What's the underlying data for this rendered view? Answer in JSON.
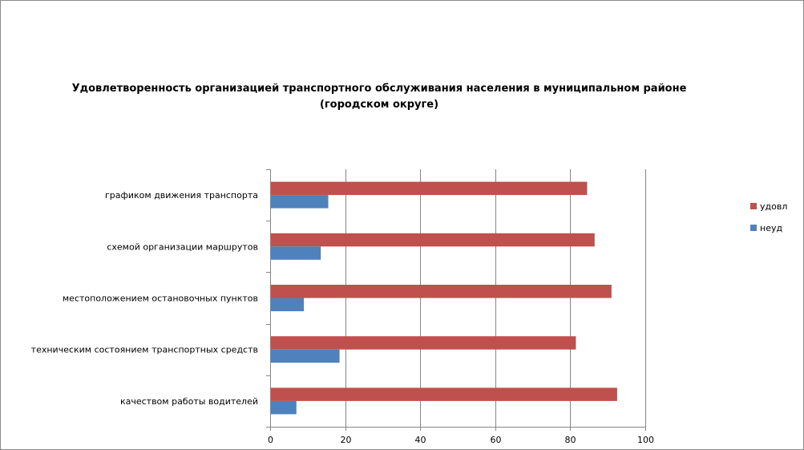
{
  "chart_data": {
    "type": "bar",
    "orientation": "horizontal",
    "title": "Удовлетворенность организацией транспортного обслуживания населения в муниципальном районе (городском округе)",
    "title_lines": [
      "Удовлетворенность организацией транспортного обслуживания населения в муниципальном районе",
      "(городском округе)"
    ],
    "categories": [
      "графиком движения транспорта",
      "схемой организации маршрутов",
      "местоположением остановочных пунктов",
      "техническим состоянием транспортных средств",
      "качеством работы водителей"
    ],
    "series": [
      {
        "name": "удовл",
        "color": "#c0504d",
        "values": [
          84.5,
          86.5,
          91,
          81.5,
          92.5
        ]
      },
      {
        "name": "неуд",
        "color": "#4f81bd",
        "values": [
          15.5,
          13.5,
          9,
          18.5,
          7
        ]
      }
    ],
    "xlim": [
      0,
      100
    ],
    "xticks": [
      0,
      20,
      40,
      60,
      80,
      100
    ],
    "xtick_labels": [
      "0",
      "20",
      "40",
      "60",
      "80",
      "100"
    ],
    "legend_position": "right",
    "grid": "vertical",
    "grid_color": "#868686"
  }
}
